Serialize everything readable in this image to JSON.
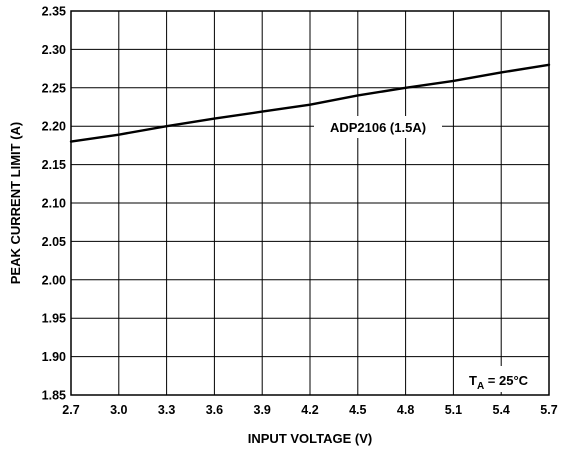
{
  "chart_data": {
    "type": "line",
    "xlabel": "INPUT VOLTAGE (V)",
    "ylabel": "PEAK CURRENT LIMIT (A)",
    "xlim": [
      2.7,
      5.7
    ],
    "ylim": [
      1.85,
      2.35
    ],
    "x_ticks": [
      "2.7",
      "3.0",
      "3.3",
      "3.6",
      "3.9",
      "4.2",
      "4.5",
      "4.8",
      "5.1",
      "5.4",
      "5.7"
    ],
    "y_ticks": [
      "2.35",
      "2.30",
      "2.25",
      "2.20",
      "2.15",
      "2.10",
      "2.05",
      "2.00",
      "1.95",
      "1.90",
      "1.85"
    ],
    "grid": true,
    "series": [
      {
        "name": "ADP2106 (1.5A)",
        "x": [
          2.7,
          3.0,
          3.3,
          3.6,
          3.9,
          4.2,
          4.5,
          4.8,
          5.1,
          5.4,
          5.7
        ],
        "y": [
          2.18,
          2.189,
          2.2,
          2.21,
          2.219,
          2.228,
          2.24,
          2.25,
          2.259,
          2.27,
          2.28
        ]
      }
    ],
    "annotations": {
      "series_label": "ADP2106 (1.5A)",
      "condition_prefix": "T",
      "condition_sub": "A",
      "condition_suffix": " = 25°C"
    }
  }
}
